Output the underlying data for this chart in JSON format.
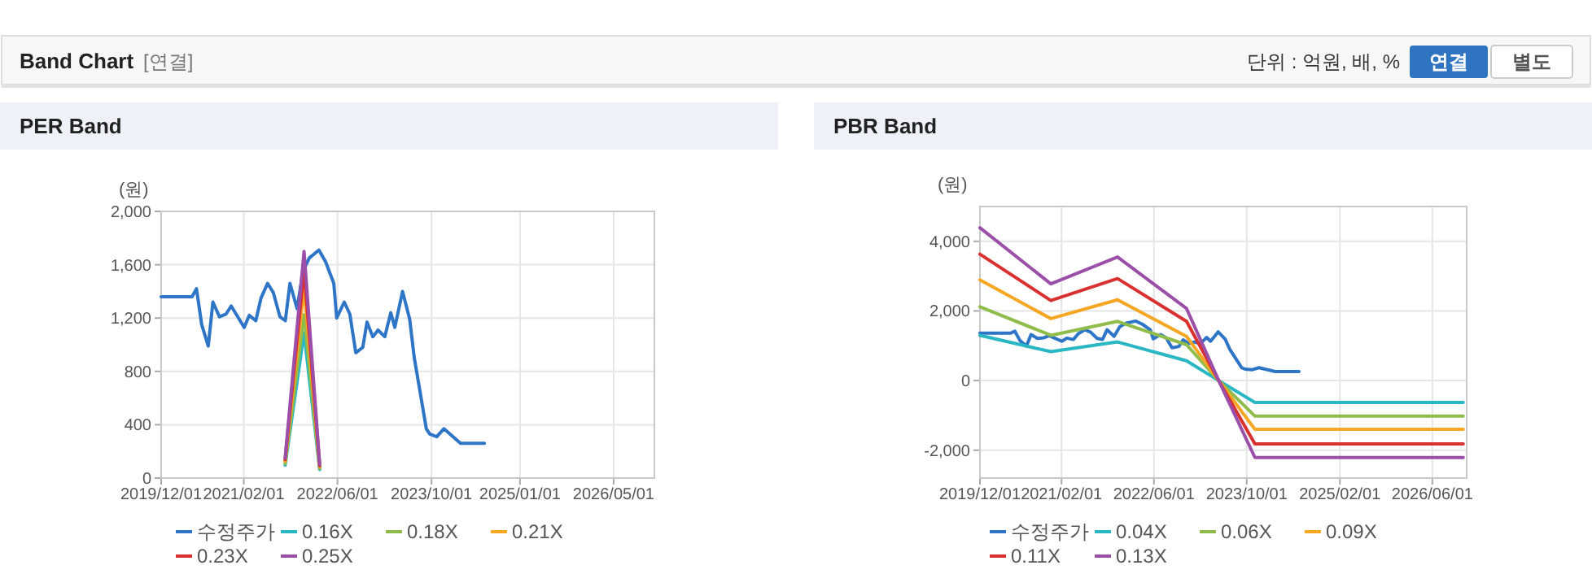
{
  "chart_data": [
    {
      "type": "other",
      "title": "Band Chart",
      "annotations": [
        "[연결]",
        "단위 : 억원, 배, %",
        "연결",
        "별도"
      ]
    },
    {
      "type": "line",
      "title": "PER Band",
      "ylabel": "(원)",
      "grid": true,
      "legend": "bottom",
      "xlim": [
        "2019-12-01",
        "2026-11-28"
      ],
      "xticks": [
        {
          "value": "2019-12-01",
          "label": "2019/12/01"
        },
        {
          "value": "2021-02-01",
          "label": "2021/02/01"
        },
        {
          "value": "2022-06-01",
          "label": "2022/06/01"
        },
        {
          "value": "2023-10-01",
          "label": "2023/10/01"
        },
        {
          "value": "2025-01-01",
          "label": "2025/01/01"
        },
        {
          "value": "2026-05-01",
          "label": "2026/05/01"
        }
      ],
      "ylim": [
        0,
        2000
      ],
      "yticks": [
        0,
        400,
        800,
        {
          "value": 1200,
          "label": "1,200"
        },
        {
          "value": 1600,
          "label": "1,600"
        },
        {
          "value": 2000,
          "label": "2,000"
        }
      ],
      "series": [
        {
          "name": "수정주가",
          "color": "#2e75c8",
          "x": [
            "2019-12-01",
            "2020-05-09",
            "2020-06-01",
            "2020-06-28",
            "2020-08-01",
            "2020-08-25",
            "2020-09-28",
            "2020-11-01",
            "2020-11-28",
            "2021-02-03",
            "2021-03-01",
            "2021-04-04",
            "2021-05-01",
            "2021-06-04",
            "2021-07-04",
            "2021-08-07",
            "2021-09-04",
            "2021-09-28",
            "2021-11-04",
            "2021-12-04",
            "2022-01-06",
            "2022-02-25",
            "2022-04-01",
            "2022-05-13",
            "2022-05-28",
            "2022-07-06",
            "2022-08-04",
            "2022-09-04",
            "2022-10-10",
            "2022-11-01",
            "2022-12-01",
            "2022-12-28",
            "2023-02-01",
            "2023-03-04",
            "2023-03-25",
            "2023-05-04",
            "2023-06-10",
            "2023-07-04",
            "2023-09-04",
            "2023-09-22",
            "2023-10-28",
            "2023-12-04",
            "2024-02-28",
            "2024-07-01"
          ],
          "values": [
            1360,
            1360,
            1420,
            1150,
            990,
            1320,
            1210,
            1230,
            1290,
            1130,
            1220,
            1180,
            1350,
            1460,
            1390,
            1210,
            1180,
            1460,
            1270,
            1550,
            1650,
            1710,
            1620,
            1460,
            1200,
            1320,
            1230,
            940,
            980,
            1170,
            1060,
            1110,
            1060,
            1240,
            1130,
            1400,
            1190,
            900,
            370,
            330,
            310,
            370,
            260,
            260
          ]
        },
        {
          "name": "0.16X",
          "color": "#2ab7c4",
          "x": [
            "2021-09-03",
            "2021-12-10",
            "2022-03-01"
          ],
          "values": [
            96,
            1088,
            64
          ]
        },
        {
          "name": "0.18X",
          "color": "#8fbc4b",
          "x": [
            "2021-09-03",
            "2021-12-10",
            "2022-03-01"
          ],
          "values": [
            108,
            1224,
            72
          ]
        },
        {
          "name": "0.21X",
          "color": "#f5a623",
          "x": [
            "2021-09-03",
            "2021-12-10",
            "2022-03-01"
          ],
          "values": [
            126,
            1428,
            84
          ]
        },
        {
          "name": "0.23X",
          "color": "#d93030",
          "x": [
            "2021-09-03",
            "2021-12-10",
            "2022-03-01"
          ],
          "values": [
            138,
            1564,
            92
          ]
        },
        {
          "name": "0.25X",
          "color": "#9b4fa8",
          "x": [
            "2021-09-03",
            "2021-12-10",
            "2022-03-01"
          ],
          "values": [
            150,
            1700,
            100
          ]
        }
      ]
    },
    {
      "type": "line",
      "title": "PBR Band",
      "ylabel": "(원)",
      "grid": true,
      "legend": "bottom",
      "xlim": [
        "2019-12-01",
        "2026-11-28"
      ],
      "xticks": [
        {
          "value": "2019-12-01",
          "label": "2019/12/01"
        },
        {
          "value": "2021-02-01",
          "label": "2021/02/01"
        },
        {
          "value": "2022-06-01",
          "label": "2022/06/01"
        },
        {
          "value": "2023-10-01",
          "label": "2023/10/01"
        },
        {
          "value": "2025-02-01",
          "label": "2025/02/01"
        },
        {
          "value": "2026-06-01",
          "label": "2026/06/01"
        }
      ],
      "ylim": [
        -2800,
        5000
      ],
      "yticks": [
        {
          "value": -2000,
          "label": "-2,000"
        },
        0,
        {
          "value": 2000,
          "label": "2,000"
        },
        {
          "value": 4000,
          "label": "4,000"
        }
      ],
      "series": [
        {
          "name": "수정주가",
          "color": "#2e75c8",
          "x": [
            "2019-12-01",
            "2020-05-09",
            "2020-06-01",
            "2020-06-28",
            "2020-08-01",
            "2020-08-25",
            "2020-09-28",
            "2020-11-01",
            "2020-11-28",
            "2021-02-03",
            "2021-03-01",
            "2021-04-04",
            "2021-05-01",
            "2021-06-04",
            "2021-07-04",
            "2021-08-07",
            "2021-09-04",
            "2021-09-28",
            "2021-11-04",
            "2021-12-04",
            "2022-01-06",
            "2022-02-25",
            "2022-04-01",
            "2022-05-13",
            "2022-05-28",
            "2022-07-06",
            "2022-08-04",
            "2022-09-04",
            "2022-10-10",
            "2022-11-01",
            "2022-12-01",
            "2022-12-28",
            "2023-02-01",
            "2023-03-04",
            "2023-03-25",
            "2023-05-04",
            "2023-06-10",
            "2023-07-04",
            "2023-09-04",
            "2023-09-22",
            "2023-10-28",
            "2023-12-04",
            "2024-02-28",
            "2024-07-01"
          ],
          "values": [
            1360,
            1360,
            1420,
            1150,
            990,
            1320,
            1210,
            1230,
            1290,
            1130,
            1220,
            1180,
            1350,
            1460,
            1390,
            1210,
            1180,
            1460,
            1270,
            1550,
            1650,
            1710,
            1620,
            1460,
            1200,
            1320,
            1230,
            940,
            980,
            1170,
            1060,
            1110,
            1060,
            1240,
            1130,
            1400,
            1190,
            900,
            370,
            330,
            310,
            370,
            260,
            260
          ]
        },
        {
          "name": "0.04X",
          "color": "#2ab7c4",
          "x": [
            "2019-12-01",
            "2020-12-07",
            "2021-11-22",
            "2022-11-19",
            "2023-05-07",
            "2023-11-13",
            "2026-11-10"
          ],
          "values": [
            1300,
            830,
            1110,
            570,
            0,
            -630,
            -630
          ]
        },
        {
          "name": "0.06X",
          "color": "#8fbc4b",
          "x": [
            "2019-12-01",
            "2020-12-07",
            "2021-11-22",
            "2022-11-19",
            "2023-05-07",
            "2023-11-13",
            "2026-11-10"
          ],
          "values": [
            2120,
            1300,
            1700,
            1030,
            0,
            -1020,
            -1020
          ]
        },
        {
          "name": "0.09X",
          "color": "#f5a623",
          "x": [
            "2019-12-01",
            "2020-12-07",
            "2021-11-22",
            "2022-11-19",
            "2023-05-07",
            "2023-11-13",
            "2026-11-10"
          ],
          "values": [
            2890,
            1780,
            2320,
            1270,
            0,
            -1400,
            -1400
          ]
        },
        {
          "name": "0.11X",
          "color": "#d93030",
          "x": [
            "2019-12-01",
            "2020-12-07",
            "2021-11-22",
            "2022-11-19",
            "2023-05-07",
            "2023-11-13",
            "2026-11-10"
          ],
          "values": [
            3630,
            2300,
            2930,
            1700,
            0,
            -1820,
            -1820
          ]
        },
        {
          "name": "0.13X",
          "color": "#9b4fa8",
          "x": [
            "2019-12-01",
            "2020-12-07",
            "2021-11-22",
            "2022-11-19",
            "2023-05-07",
            "2023-11-13",
            "2026-11-10"
          ],
          "values": [
            4390,
            2780,
            3550,
            2070,
            0,
            -2210,
            -2210
          ]
        }
      ]
    }
  ]
}
